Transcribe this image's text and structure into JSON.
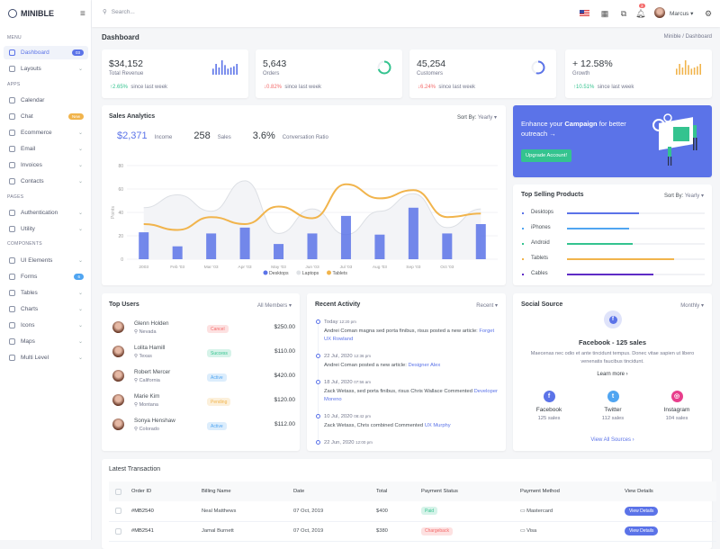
{
  "brand": "MINIBLE",
  "sidebar": {
    "sections": {
      "menu": "MENU",
      "apps": "APPS",
      "pages": "PAGES",
      "components": "COMPONENTS"
    },
    "items": [
      {
        "label": "Dashboard",
        "badge": "03",
        "badge_color": "#5b73e8",
        "active": true
      },
      {
        "label": "Layouts"
      },
      {
        "label": "Calendar"
      },
      {
        "label": "Chat",
        "badge": "New",
        "badge_color": "#f1b44c"
      },
      {
        "label": "Ecommerce"
      },
      {
        "label": "Email"
      },
      {
        "label": "Invoices"
      },
      {
        "label": "Contacts"
      },
      {
        "label": "Authentication"
      },
      {
        "label": "Utility"
      },
      {
        "label": "UI Elements"
      },
      {
        "label": "Forms",
        "badge": "6",
        "badge_color": "#50a5f1"
      },
      {
        "label": "Tables"
      },
      {
        "label": "Charts"
      },
      {
        "label": "Icons"
      },
      {
        "label": "Maps"
      },
      {
        "label": "Multi Level"
      }
    ]
  },
  "topbar": {
    "search_placeholder": "Search...",
    "notifications": "3",
    "user": "Marcus"
  },
  "page": {
    "title": "Dashboard",
    "breadcrumb": [
      "Minible",
      "Dashboard"
    ]
  },
  "stats": [
    {
      "value": "$34,152",
      "label": "Total Revenue",
      "change": "2.65%",
      "dir": "up",
      "since": "since last week",
      "mini": "bars",
      "color": "#5b73e8",
      "mini_values": [
        25,
        45,
        30,
        60,
        40,
        25,
        30,
        35,
        45
      ]
    },
    {
      "value": "5,643",
      "label": "Orders",
      "change": "0.82%",
      "dir": "down",
      "since": "since last week",
      "mini": "radial",
      "color": "#34c38f",
      "percent": 70
    },
    {
      "value": "45,254",
      "label": "Customers",
      "change": "6.24%",
      "dir": "down",
      "since": "since last week",
      "mini": "radial",
      "color": "#5b73e8",
      "percent": 55
    },
    {
      "value": "+ 12.58%",
      "label": "Growth",
      "change": "10.51%",
      "dir": "up",
      "since": "since last week",
      "mini": "bars",
      "color": "#f1b44c",
      "mini_values": [
        25,
        45,
        30,
        60,
        40,
        25,
        30,
        35,
        45
      ]
    }
  ],
  "sales": {
    "title": "Sales Analytics",
    "sort_label": "Sort By:",
    "sort_value": "Yearly",
    "kpis": [
      {
        "value": "$2,371",
        "label": "Income"
      },
      {
        "value": "258",
        "label": "Sales"
      },
      {
        "value": "3.6%",
        "label": "Conversation Ratio"
      }
    ]
  },
  "chart_data": {
    "type": "bar+line+area",
    "categories": [
      "2003",
      "Feb '03",
      "Mar '03",
      "Apr '03",
      "May '03",
      "Jun '03",
      "Jul '03",
      "Aug '03",
      "Sep '03",
      "Oct '03",
      ""
    ],
    "ylabel": "Points",
    "ylim": [
      0,
      80
    ],
    "yticks": [
      0,
      20,
      40,
      60,
      80
    ],
    "grid": true,
    "legend": "bottom",
    "series": [
      {
        "name": "Desktops",
        "type": "bar",
        "color": "#5b73e8",
        "values": [
          23,
          11,
          22,
          27,
          13,
          22,
          37,
          21,
          44,
          22,
          30
        ]
      },
      {
        "name": "Laptops",
        "type": "area",
        "color": "#dfe2e6",
        "values": [
          44,
          55,
          41,
          67,
          22,
          43,
          21,
          41,
          56,
          27,
          43
        ]
      },
      {
        "name": "Tablets",
        "type": "line",
        "color": "#f1b44c",
        "values": [
          30,
          25,
          36,
          30,
          45,
          35,
          64,
          52,
          59,
          36,
          39
        ]
      }
    ]
  },
  "campaign": {
    "text_pre": "Enhance your ",
    "text_bold": "Campaign",
    "text_post": " for better outreach",
    "arrow": "→",
    "button": "Upgrade Account!"
  },
  "top_selling": {
    "title": "Top Selling Products",
    "sort_label": "Sort By:",
    "sort_value": "Yearly",
    "items": [
      {
        "label": "Desktops",
        "percent": 52,
        "color": "#5b73e8"
      },
      {
        "label": "iPhones",
        "percent": 45,
        "color": "#50a5f1"
      },
      {
        "label": "Android",
        "percent": 48,
        "color": "#34c38f"
      },
      {
        "label": "Tablets",
        "percent": 78,
        "color": "#f1b44c"
      },
      {
        "label": "Cables",
        "percent": 63,
        "color": "#5e2bc6"
      }
    ]
  },
  "top_users": {
    "title": "Top Users",
    "filter": "All Members",
    "users": [
      {
        "name": "Glenn Holden",
        "location": "Nevada",
        "status": "Cancel",
        "amount": "$250.00"
      },
      {
        "name": "Lolita Hamill",
        "location": "Texas",
        "status": "Success",
        "amount": "$110.00"
      },
      {
        "name": "Robert Mercer",
        "location": "California",
        "status": "Active",
        "amount": "$420.00"
      },
      {
        "name": "Marie Kim",
        "location": "Montana",
        "status": "Pending",
        "amount": "$120.00"
      },
      {
        "name": "Sonya Henshaw",
        "location": "Colorado",
        "status": "Active",
        "amount": "$112.00"
      }
    ]
  },
  "activity": {
    "title": "Recent Activity",
    "filter": "Recent",
    "items": [
      {
        "date": "Today",
        "time": "12:20 pm",
        "text": "Andrei Coman magna sed porta finibus, risus posted a new article: ",
        "link": "Forget UX Rowland"
      },
      {
        "date": "22 Jul, 2020",
        "time": "12:36 pm",
        "text": "Andrei Coman posted a new article: ",
        "link": "Designer Alex"
      },
      {
        "date": "18 Jul, 2020",
        "time": "07:56 am",
        "text": "Zack Wetass, sed porta finibus, risus Chris Wallace Commented ",
        "link": "Developer Moreno"
      },
      {
        "date": "10 Jul, 2020",
        "time": "08:42 pm",
        "text": "Zack Wetass, Chris combined Commented ",
        "link": "UX Murphy"
      },
      {
        "date": "22 Jun, 2020",
        "time": "12:00 pm",
        "text": "",
        "link": ""
      }
    ]
  },
  "social": {
    "title": "Social Source",
    "filter": "Monthly",
    "headline": "Facebook - 125 sales",
    "desc": "Maecenas nec odio et ante tincidunt tempus. Donec vitae sapien ut libero venenatis faucibus tincidunt.",
    "learn_more": "Learn more ›",
    "sources": [
      {
        "name": "Facebook",
        "sales": "125 sales",
        "color": "#5b73e8",
        "glyph": "f"
      },
      {
        "name": "Twitter",
        "sales": "112 sales",
        "color": "#50a5f1",
        "glyph": "t"
      },
      {
        "name": "Instagram",
        "sales": "104 sales",
        "color": "#e83e8c",
        "glyph": "◎"
      }
    ],
    "view_all": "View All Sources ›"
  },
  "transactions": {
    "title": "Latest Transaction",
    "columns": [
      "Order ID",
      "Billing Name",
      "Date",
      "Total",
      "Payment Status",
      "Payment Method",
      "View Details"
    ],
    "rows": [
      {
        "id": "#MB2540",
        "name": "Neal Matthews",
        "date": "07 Oct, 2019",
        "total": "$400",
        "status": "Paid",
        "method": "Mastercard",
        "action": "View Details"
      },
      {
        "id": "#MB2541",
        "name": "Jamal Burnett",
        "date": "07 Oct, 2019",
        "total": "$380",
        "status": "Chargeback",
        "method": "Visa",
        "action": "View Details"
      }
    ]
  }
}
